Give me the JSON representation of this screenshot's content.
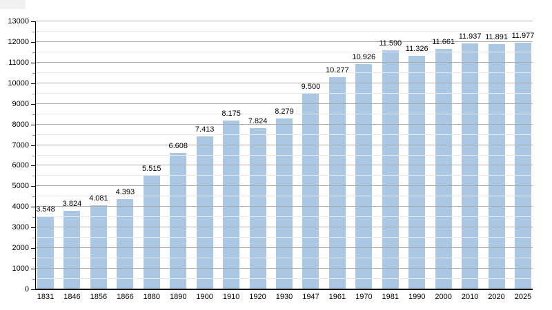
{
  "chart_data": {
    "type": "bar",
    "title": "",
    "xlabel": "",
    "ylabel": "",
    "categories": [
      "1831",
      "1846",
      "1856",
      "1866",
      "1880",
      "1890",
      "1900",
      "1910",
      "1920",
      "1930",
      "1947",
      "1961",
      "1970",
      "1981",
      "1990",
      "2000",
      "2010",
      "2020",
      "2025"
    ],
    "values": [
      3548,
      3824,
      4081,
      4393,
      5515,
      6608,
      7413,
      8175,
      7824,
      8279,
      9500,
      10277,
      10926,
      11590,
      11326,
      11661,
      11937,
      11891,
      11977
    ],
    "value_labels": [
      "3.548",
      "3.824",
      "4.081",
      "4.393",
      "5.515",
      "6.608",
      "7.413",
      "8.175",
      "7.824",
      "8.279",
      "9.500",
      "10.277",
      "10.926",
      "11.590",
      "11.326",
      "11.661",
      "11.937",
      "11.891",
      "11.977"
    ],
    "ylim": [
      0,
      13000
    ],
    "y_major_step": 1000,
    "y_minor_step": 500,
    "y_tick_labels": [
      "0",
      "1000",
      "2000",
      "3000",
      "4000",
      "5000",
      "6000",
      "7000",
      "8000",
      "9000",
      "10000",
      "11000",
      "12000",
      "13000"
    ],
    "grid": "on",
    "legend": "none",
    "colors": {
      "bar": "#aac8e4",
      "grid_major": "#ababab",
      "grid_minor": "#e8e8e8",
      "axis": "#000000",
      "text": "#000000"
    }
  }
}
